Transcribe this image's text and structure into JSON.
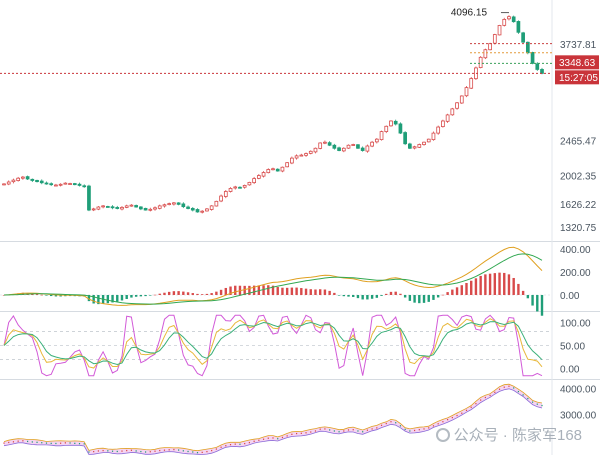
{
  "chart_data": [
    {
      "type": "candlestick",
      "y_ticks": [
        "3737.81",
        "2465.47",
        "2002.35",
        "1626.22",
        "1320.75"
      ],
      "ylim": [
        1150,
        4250
      ],
      "price_label": "3348.63",
      "time_label": "15:27:05",
      "peak_label": "4096.15",
      "peak_value": 4096.15,
      "price_value": 3348.63,
      "closes": [
        1890,
        1915,
        1940,
        1965,
        1980,
        1955,
        1935,
        1920,
        1905,
        1890,
        1880,
        1875,
        1885,
        1900,
        1895,
        1880,
        1870,
        1860,
        1545,
        1560,
        1585,
        1600,
        1590,
        1575,
        1565,
        1580,
        1600,
        1610,
        1585,
        1560,
        1545,
        1555,
        1575,
        1600,
        1615,
        1630,
        1640,
        1620,
        1590,
        1565,
        1545,
        1520,
        1530,
        1560,
        1600,
        1660,
        1730,
        1790,
        1830,
        1850,
        1845,
        1870,
        1910,
        1960,
        2000,
        2040,
        2080,
        2090,
        2060,
        2110,
        2170,
        2230,
        2260,
        2270,
        2290,
        2320,
        2360,
        2430,
        2440,
        2400,
        2360,
        2330,
        2360,
        2400,
        2410,
        2360,
        2330,
        2390,
        2440,
        2480,
        2580,
        2650,
        2720,
        2680,
        2560,
        2420,
        2360,
        2380,
        2410,
        2440,
        2480,
        2560,
        2640,
        2720,
        2800,
        2880,
        2960,
        3050,
        3160,
        3280,
        3420,
        3560,
        3660,
        3740,
        3860,
        3980,
        4060,
        4096,
        4030,
        3890,
        3760,
        3620,
        3480,
        3400,
        3348
      ]
    },
    {
      "type": "macd",
      "y_ticks": [
        "400.00",
        "200.00",
        "0.00"
      ],
      "ylim": [
        -130,
        450
      ]
    },
    {
      "type": "kdj",
      "y_ticks": [
        "100.00",
        "50.00",
        "0.00"
      ],
      "ylim": [
        -20,
        120
      ]
    },
    {
      "type": "area",
      "y_ticks": [
        "4000.00",
        "3000.00"
      ],
      "ylim": [
        1700,
        4300
      ]
    }
  ],
  "watermark": {
    "text": "公众号 · 陈家军168"
  },
  "colors": {
    "up": "#d84a4a",
    "down": "#1f9e78",
    "price_line": "#c9343a",
    "macd_dif": "#e0a020",
    "macd_dea": "#32a852",
    "kdj_k": "#d25ad8",
    "kdj_d": "#e8b83a",
    "kdj_j": "#3ab07a",
    "area_fill": "#f2c9ef"
  }
}
